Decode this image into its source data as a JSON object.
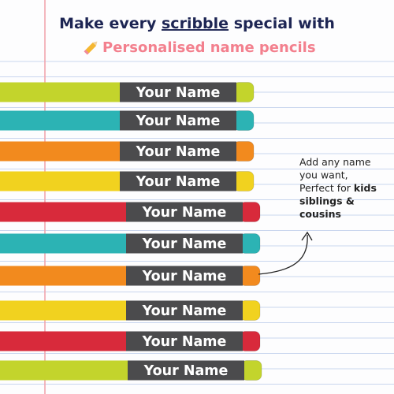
{
  "header": {
    "title_before": "Make every",
    "title_emphasis": "scribble",
    "title_after": "special with",
    "subtitle": "Personalised name pencils"
  },
  "pencils": [
    {
      "label": "Your Name",
      "color": "#c3d42c"
    },
    {
      "label": "Your Name",
      "color": "#2cb3b4"
    },
    {
      "label": "Your Name",
      "color": "#f28a1e"
    },
    {
      "label": "Your Name",
      "color": "#f1d21f"
    },
    {
      "label": "Your Name",
      "color": "#d82a3b"
    },
    {
      "label": "Your Name",
      "color": "#2cb3b4"
    },
    {
      "label": "Your Name",
      "color": "#f28a1e"
    },
    {
      "label": "Your Name",
      "color": "#f1d21f"
    },
    {
      "label": "Your Name",
      "color": "#d82a3b"
    },
    {
      "label": "Your Name",
      "color": "#c3d42c"
    }
  ],
  "annotation": [
    [
      {
        "text": "Add any name"
      }
    ],
    [
      {
        "text": "you want,"
      }
    ],
    [
      {
        "text": "Perfect for "
      },
      {
        "text": "kids",
        "bold": true
      }
    ],
    [
      {
        "text": "siblings &",
        "bold": true
      }
    ],
    [
      {
        "text": "cousins",
        "bold": true
      }
    ]
  ]
}
